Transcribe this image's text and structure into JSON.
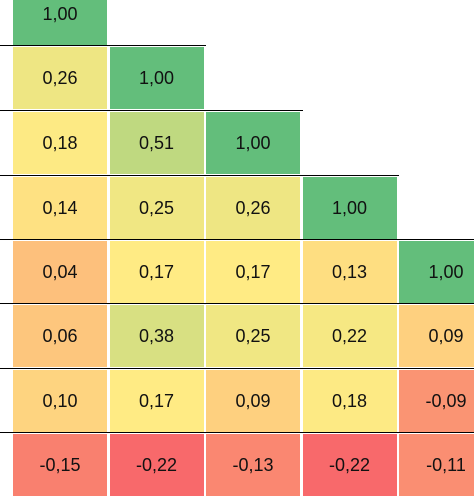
{
  "chart_data": {
    "type": "heatmap",
    "title": "",
    "xlabel": "",
    "ylabel": "",
    "grid": false,
    "color_scale": {
      "low": "#f8696b",
      "mid": "#ffeb84",
      "high": "#63be7b"
    },
    "rows": [
      [
        "1,00",
        null,
        null,
        null,
        null
      ],
      [
        "0,26",
        "1,00",
        null,
        null,
        null
      ],
      [
        "0,18",
        "0,51",
        "1,00",
        null,
        null
      ],
      [
        "0,14",
        "0,25",
        "0,26",
        "1,00",
        null
      ],
      [
        "0,04",
        "0,17",
        "0,17",
        "0,13",
        "1,00"
      ],
      [
        "0,06",
        "0,38",
        "0,25",
        "0,22",
        "0,09"
      ],
      [
        "0,10",
        "0,17",
        "0,09",
        "0,18",
        "-0,09"
      ],
      [
        "-0,15",
        "-0,22",
        "-0,13",
        "-0,22",
        "-0,11"
      ]
    ]
  }
}
